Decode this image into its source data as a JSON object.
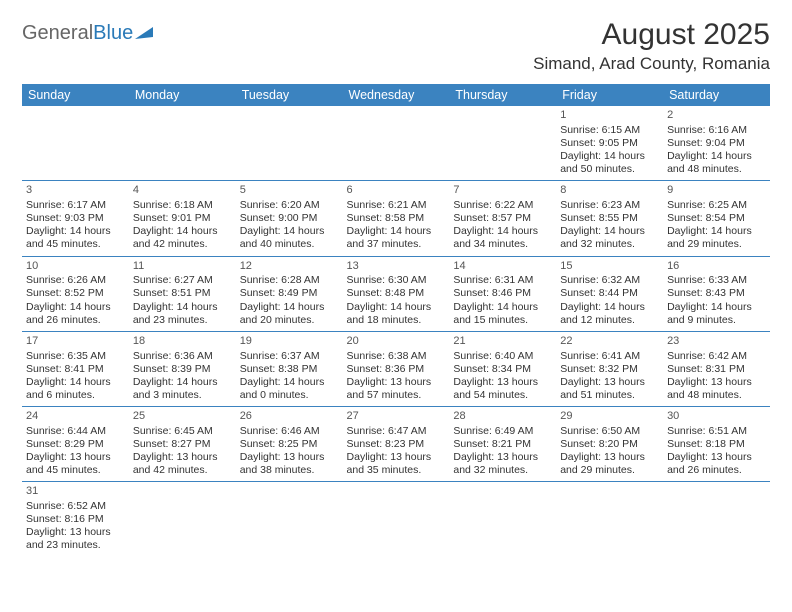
{
  "logo": {
    "part1": "General",
    "part2": "Blue"
  },
  "title": "August 2025",
  "location": "Simand, Arad County, Romania",
  "styling": {
    "header_bg": "#3b83c0",
    "header_text": "#ffffff",
    "border_color": "#3b83c0",
    "body_bg": "#ffffff",
    "text_color": "#333333",
    "title_fontsize": 30,
    "location_fontsize": 17,
    "dayheader_fontsize": 12.5,
    "cell_fontsize": 10.5,
    "logo_accent": "#2a7ab8"
  },
  "day_headers": [
    "Sunday",
    "Monday",
    "Tuesday",
    "Wednesday",
    "Thursday",
    "Friday",
    "Saturday"
  ],
  "weeks": [
    [
      null,
      null,
      null,
      null,
      null,
      {
        "num": "1",
        "sunrise": "Sunrise: 6:15 AM",
        "sunset": "Sunset: 9:05 PM",
        "daylight": "Daylight: 14 hours and 50 minutes."
      },
      {
        "num": "2",
        "sunrise": "Sunrise: 6:16 AM",
        "sunset": "Sunset: 9:04 PM",
        "daylight": "Daylight: 14 hours and 48 minutes."
      }
    ],
    [
      {
        "num": "3",
        "sunrise": "Sunrise: 6:17 AM",
        "sunset": "Sunset: 9:03 PM",
        "daylight": "Daylight: 14 hours and 45 minutes."
      },
      {
        "num": "4",
        "sunrise": "Sunrise: 6:18 AM",
        "sunset": "Sunset: 9:01 PM",
        "daylight": "Daylight: 14 hours and 42 minutes."
      },
      {
        "num": "5",
        "sunrise": "Sunrise: 6:20 AM",
        "sunset": "Sunset: 9:00 PM",
        "daylight": "Daylight: 14 hours and 40 minutes."
      },
      {
        "num": "6",
        "sunrise": "Sunrise: 6:21 AM",
        "sunset": "Sunset: 8:58 PM",
        "daylight": "Daylight: 14 hours and 37 minutes."
      },
      {
        "num": "7",
        "sunrise": "Sunrise: 6:22 AM",
        "sunset": "Sunset: 8:57 PM",
        "daylight": "Daylight: 14 hours and 34 minutes."
      },
      {
        "num": "8",
        "sunrise": "Sunrise: 6:23 AM",
        "sunset": "Sunset: 8:55 PM",
        "daylight": "Daylight: 14 hours and 32 minutes."
      },
      {
        "num": "9",
        "sunrise": "Sunrise: 6:25 AM",
        "sunset": "Sunset: 8:54 PM",
        "daylight": "Daylight: 14 hours and 29 minutes."
      }
    ],
    [
      {
        "num": "10",
        "sunrise": "Sunrise: 6:26 AM",
        "sunset": "Sunset: 8:52 PM",
        "daylight": "Daylight: 14 hours and 26 minutes."
      },
      {
        "num": "11",
        "sunrise": "Sunrise: 6:27 AM",
        "sunset": "Sunset: 8:51 PM",
        "daylight": "Daylight: 14 hours and 23 minutes."
      },
      {
        "num": "12",
        "sunrise": "Sunrise: 6:28 AM",
        "sunset": "Sunset: 8:49 PM",
        "daylight": "Daylight: 14 hours and 20 minutes."
      },
      {
        "num": "13",
        "sunrise": "Sunrise: 6:30 AM",
        "sunset": "Sunset: 8:48 PM",
        "daylight": "Daylight: 14 hours and 18 minutes."
      },
      {
        "num": "14",
        "sunrise": "Sunrise: 6:31 AM",
        "sunset": "Sunset: 8:46 PM",
        "daylight": "Daylight: 14 hours and 15 minutes."
      },
      {
        "num": "15",
        "sunrise": "Sunrise: 6:32 AM",
        "sunset": "Sunset: 8:44 PM",
        "daylight": "Daylight: 14 hours and 12 minutes."
      },
      {
        "num": "16",
        "sunrise": "Sunrise: 6:33 AM",
        "sunset": "Sunset: 8:43 PM",
        "daylight": "Daylight: 14 hours and 9 minutes."
      }
    ],
    [
      {
        "num": "17",
        "sunrise": "Sunrise: 6:35 AM",
        "sunset": "Sunset: 8:41 PM",
        "daylight": "Daylight: 14 hours and 6 minutes."
      },
      {
        "num": "18",
        "sunrise": "Sunrise: 6:36 AM",
        "sunset": "Sunset: 8:39 PM",
        "daylight": "Daylight: 14 hours and 3 minutes."
      },
      {
        "num": "19",
        "sunrise": "Sunrise: 6:37 AM",
        "sunset": "Sunset: 8:38 PM",
        "daylight": "Daylight: 14 hours and 0 minutes."
      },
      {
        "num": "20",
        "sunrise": "Sunrise: 6:38 AM",
        "sunset": "Sunset: 8:36 PM",
        "daylight": "Daylight: 13 hours and 57 minutes."
      },
      {
        "num": "21",
        "sunrise": "Sunrise: 6:40 AM",
        "sunset": "Sunset: 8:34 PM",
        "daylight": "Daylight: 13 hours and 54 minutes."
      },
      {
        "num": "22",
        "sunrise": "Sunrise: 6:41 AM",
        "sunset": "Sunset: 8:32 PM",
        "daylight": "Daylight: 13 hours and 51 minutes."
      },
      {
        "num": "23",
        "sunrise": "Sunrise: 6:42 AM",
        "sunset": "Sunset: 8:31 PM",
        "daylight": "Daylight: 13 hours and 48 minutes."
      }
    ],
    [
      {
        "num": "24",
        "sunrise": "Sunrise: 6:44 AM",
        "sunset": "Sunset: 8:29 PM",
        "daylight": "Daylight: 13 hours and 45 minutes."
      },
      {
        "num": "25",
        "sunrise": "Sunrise: 6:45 AM",
        "sunset": "Sunset: 8:27 PM",
        "daylight": "Daylight: 13 hours and 42 minutes."
      },
      {
        "num": "26",
        "sunrise": "Sunrise: 6:46 AM",
        "sunset": "Sunset: 8:25 PM",
        "daylight": "Daylight: 13 hours and 38 minutes."
      },
      {
        "num": "27",
        "sunrise": "Sunrise: 6:47 AM",
        "sunset": "Sunset: 8:23 PM",
        "daylight": "Daylight: 13 hours and 35 minutes."
      },
      {
        "num": "28",
        "sunrise": "Sunrise: 6:49 AM",
        "sunset": "Sunset: 8:21 PM",
        "daylight": "Daylight: 13 hours and 32 minutes."
      },
      {
        "num": "29",
        "sunrise": "Sunrise: 6:50 AM",
        "sunset": "Sunset: 8:20 PM",
        "daylight": "Daylight: 13 hours and 29 minutes."
      },
      {
        "num": "30",
        "sunrise": "Sunrise: 6:51 AM",
        "sunset": "Sunset: 8:18 PM",
        "daylight": "Daylight: 13 hours and 26 minutes."
      }
    ],
    [
      {
        "num": "31",
        "sunrise": "Sunrise: 6:52 AM",
        "sunset": "Sunset: 8:16 PM",
        "daylight": "Daylight: 13 hours and 23 minutes."
      },
      null,
      null,
      null,
      null,
      null,
      null
    ]
  ]
}
